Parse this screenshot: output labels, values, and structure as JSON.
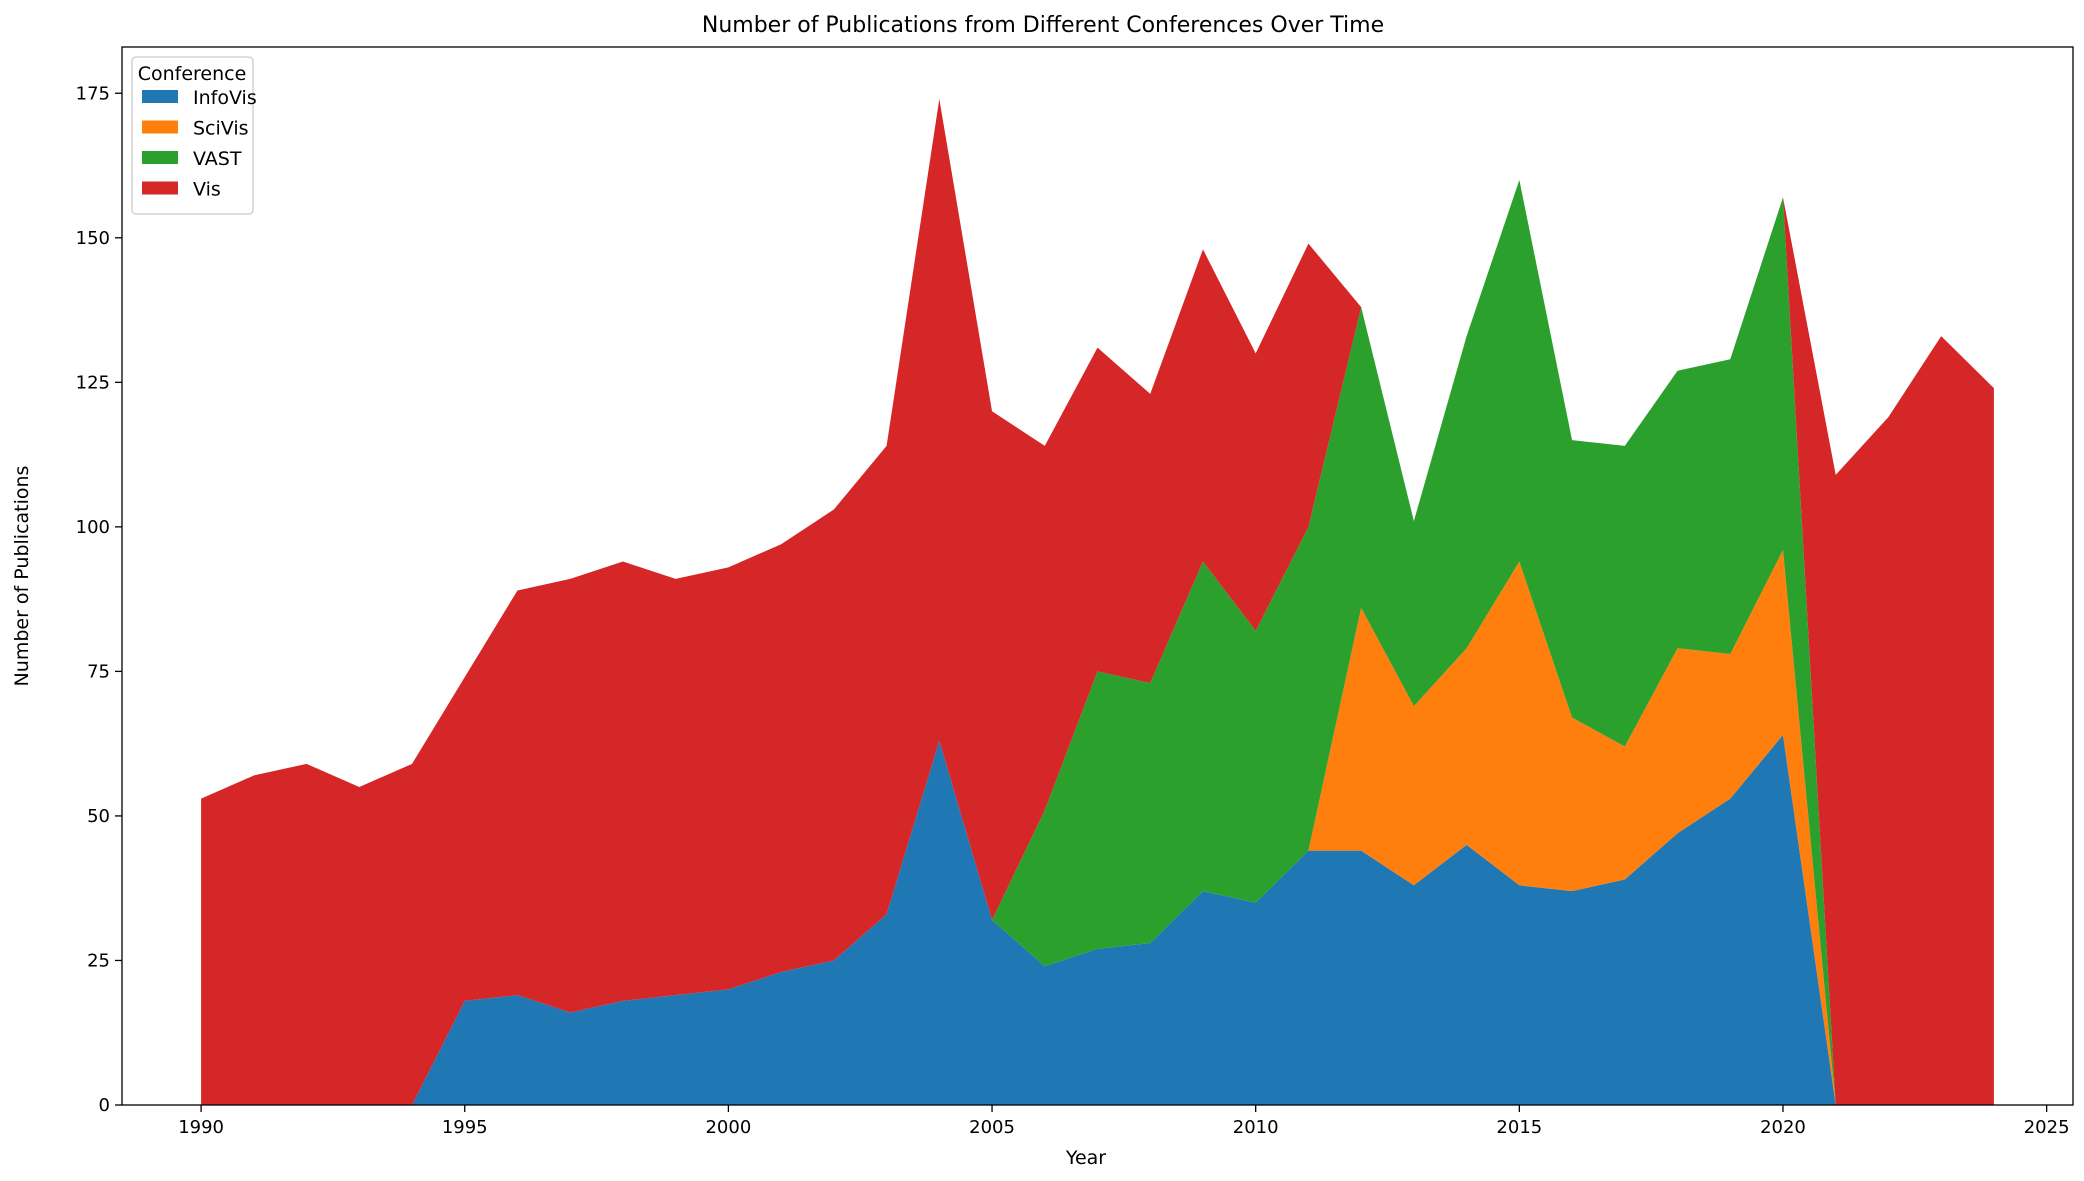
{
  "chart_data": {
    "type": "area",
    "stacked": true,
    "title": "Number of Publications from Different Conferences Over Time",
    "xlabel": "Year",
    "ylabel": "Number of Publications",
    "xlim": [
      1988.5,
      2025.5
    ],
    "ylim": [
      0,
      183
    ],
    "xticks": [
      1990,
      1995,
      2000,
      2005,
      2010,
      2015,
      2020,
      2025
    ],
    "yticks": [
      0,
      25,
      50,
      75,
      100,
      125,
      150,
      175
    ],
    "grid": false,
    "legend": {
      "title": "Conference",
      "placement": "top-left"
    },
    "x": [
      1990,
      1991,
      1992,
      1993,
      1994,
      1995,
      1996,
      1997,
      1998,
      1999,
      2000,
      2001,
      2002,
      2003,
      2004,
      2005,
      2006,
      2007,
      2008,
      2009,
      2010,
      2011,
      2012,
      2013,
      2014,
      2015,
      2016,
      2017,
      2018,
      2019,
      2020,
      2021,
      2022,
      2023,
      2024
    ],
    "series": [
      {
        "name": "InfoVis",
        "color": "#1f77b4",
        "values": [
          0,
          0,
          0,
          0,
          0,
          18,
          19,
          16,
          18,
          19,
          20,
          23,
          25,
          33,
          63,
          32,
          24,
          27,
          28,
          37,
          35,
          44,
          44,
          38,
          45,
          38,
          37,
          39,
          47,
          53,
          64,
          0,
          0,
          0,
          0
        ]
      },
      {
        "name": "SciVis",
        "color": "#ff7f0e",
        "values": [
          0,
          0,
          0,
          0,
          0,
          0,
          0,
          0,
          0,
          0,
          0,
          0,
          0,
          0,
          0,
          0,
          0,
          0,
          0,
          0,
          0,
          0,
          42,
          31,
          34,
          56,
          30,
          23,
          32,
          25,
          32,
          0,
          0,
          0,
          0
        ]
      },
      {
        "name": "VAST",
        "color": "#2ca02c",
        "values": [
          0,
          0,
          0,
          0,
          0,
          0,
          0,
          0,
          0,
          0,
          0,
          0,
          0,
          0,
          0,
          0,
          27,
          48,
          45,
          57,
          47,
          56,
          52,
          32,
          54,
          66,
          48,
          52,
          48,
          51,
          61,
          0,
          0,
          0,
          0
        ]
      },
      {
        "name": "Vis",
        "color": "#d62728",
        "values": [
          53,
          57,
          59,
          55,
          59,
          56,
          70,
          75,
          76,
          72,
          73,
          74,
          78,
          81,
          111,
          88,
          63,
          56,
          50,
          54,
          48,
          49,
          0,
          0,
          0,
          0,
          0,
          0,
          0,
          0,
          0,
          109,
          119,
          133,
          124
        ]
      }
    ]
  }
}
